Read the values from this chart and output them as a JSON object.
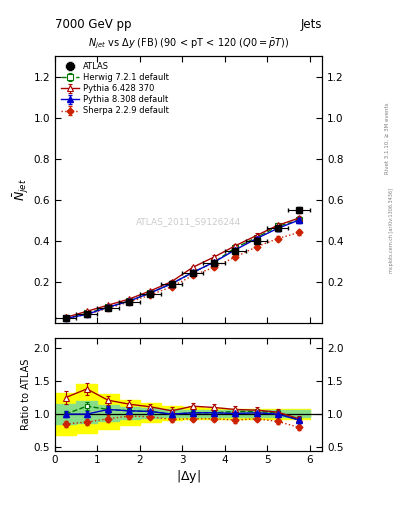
{
  "title_top": "7000 GeV pp",
  "title_right": "Jets",
  "plot_title": "N$_{jet}$ vs $\\Delta$y (FB) (90 < pT < 120 (Q0=$\\bar{p}$T))",
  "ylabel_main": "$\\bar{N}_{jet}$",
  "ylabel_ratio": "Ratio to ATLAS",
  "xlabel": "|$\\Delta$y|",
  "watermark": "ATLAS_2011_S9126244",
  "right_label_top": "Rivet 3.1.10, ≥ 3M events",
  "right_label_bot": "mcplots.cern.ch [arXiv:1306.3436]",
  "x": [
    0.25,
    0.75,
    1.25,
    1.75,
    2.25,
    2.75,
    3.25,
    3.75,
    4.25,
    4.75,
    5.25,
    5.75
  ],
  "xerr": [
    0.25,
    0.25,
    0.25,
    0.25,
    0.25,
    0.25,
    0.25,
    0.25,
    0.25,
    0.25,
    0.25,
    0.25
  ],
  "atlas_y": [
    0.02,
    0.04,
    0.07,
    0.1,
    0.14,
    0.19,
    0.24,
    0.29,
    0.35,
    0.4,
    0.46,
    0.55
  ],
  "atlas_yerr": [
    0.002,
    0.003,
    0.004,
    0.005,
    0.006,
    0.007,
    0.008,
    0.009,
    0.01,
    0.011,
    0.012,
    0.015
  ],
  "herwig_y": [
    0.02,
    0.045,
    0.075,
    0.105,
    0.145,
    0.19,
    0.245,
    0.295,
    0.365,
    0.415,
    0.47,
    0.5
  ],
  "herwig_yerr": [
    0.001,
    0.002,
    0.003,
    0.004,
    0.005,
    0.006,
    0.007,
    0.008,
    0.009,
    0.01,
    0.011,
    0.012
  ],
  "pythia6_y": [
    0.025,
    0.055,
    0.085,
    0.115,
    0.155,
    0.2,
    0.27,
    0.32,
    0.375,
    0.425,
    0.475,
    0.51
  ],
  "pythia6_yerr": [
    0.001,
    0.002,
    0.003,
    0.004,
    0.005,
    0.006,
    0.007,
    0.008,
    0.009,
    0.01,
    0.011,
    0.012
  ],
  "pythia8_y": [
    0.02,
    0.04,
    0.075,
    0.105,
    0.145,
    0.19,
    0.245,
    0.295,
    0.355,
    0.41,
    0.46,
    0.5
  ],
  "pythia8_yerr": [
    0.001,
    0.002,
    0.003,
    0.004,
    0.005,
    0.006,
    0.007,
    0.008,
    0.009,
    0.01,
    0.011,
    0.012
  ],
  "sherpa_y": [
    0.02,
    0.04,
    0.07,
    0.1,
    0.135,
    0.175,
    0.23,
    0.27,
    0.32,
    0.37,
    0.41,
    0.44
  ],
  "sherpa_yerr": [
    0.001,
    0.002,
    0.003,
    0.004,
    0.005,
    0.006,
    0.007,
    0.008,
    0.009,
    0.01,
    0.011,
    0.012
  ],
  "ratio_herwig": [
    1.0,
    1.12,
    1.07,
    1.05,
    1.04,
    1.0,
    1.02,
    1.02,
    1.04,
    1.04,
    1.02,
    0.91
  ],
  "ratio_pythia6": [
    1.25,
    1.38,
    1.21,
    1.15,
    1.11,
    1.05,
    1.12,
    1.1,
    1.07,
    1.06,
    1.03,
    0.93
  ],
  "ratio_pythia8": [
    1.0,
    1.0,
    1.07,
    1.05,
    1.04,
    1.0,
    1.02,
    1.02,
    1.01,
    1.02,
    1.0,
    0.91
  ],
  "ratio_sherpa": [
    0.85,
    0.88,
    0.93,
    0.97,
    0.96,
    0.92,
    0.93,
    0.93,
    0.91,
    0.93,
    0.89,
    0.8
  ],
  "ratio_herwig_err": [
    0.05,
    0.06,
    0.05,
    0.04,
    0.04,
    0.04,
    0.04,
    0.04,
    0.04,
    0.04,
    0.04,
    0.04
  ],
  "ratio_pythia6_err": [
    0.1,
    0.09,
    0.07,
    0.06,
    0.05,
    0.05,
    0.05,
    0.05,
    0.05,
    0.05,
    0.04,
    0.04
  ],
  "ratio_pythia8_err": [
    0.05,
    0.05,
    0.05,
    0.04,
    0.04,
    0.04,
    0.04,
    0.04,
    0.04,
    0.04,
    0.04,
    0.04
  ],
  "ratio_sherpa_err": [
    0.05,
    0.05,
    0.05,
    0.04,
    0.04,
    0.04,
    0.04,
    0.04,
    0.04,
    0.04,
    0.04,
    0.04
  ],
  "band_yellow_lo": [
    0.68,
    0.72,
    0.78,
    0.84,
    0.88,
    0.91,
    0.92,
    0.93,
    0.93,
    0.93,
    0.93,
    0.92
  ],
  "band_yellow_hi": [
    1.32,
    1.45,
    1.3,
    1.22,
    1.17,
    1.12,
    1.1,
    1.09,
    1.08,
    1.08,
    1.08,
    1.08
  ],
  "band_green_lo": [
    0.85,
    0.87,
    0.9,
    0.92,
    0.94,
    0.95,
    0.96,
    0.96,
    0.96,
    0.96,
    0.96,
    0.95
  ],
  "band_green_hi": [
    1.15,
    1.2,
    1.14,
    1.11,
    1.09,
    1.07,
    1.06,
    1.06,
    1.06,
    1.06,
    1.06,
    1.06
  ],
  "atlas_color": "#000000",
  "herwig_color": "#007700",
  "pythia6_color": "#aa0000",
  "pythia8_color": "#0000cc",
  "sherpa_color": "#cc2200",
  "ylim_main": [
    0.0,
    1.3
  ],
  "ylim_ratio": [
    0.45,
    2.15
  ],
  "xlim": [
    0.0,
    6.3
  ],
  "yticks_main": [
    0.2,
    0.4,
    0.6,
    0.8,
    1.0,
    1.2
  ],
  "yticks_ratio": [
    0.5,
    1.0,
    1.5,
    2.0
  ]
}
